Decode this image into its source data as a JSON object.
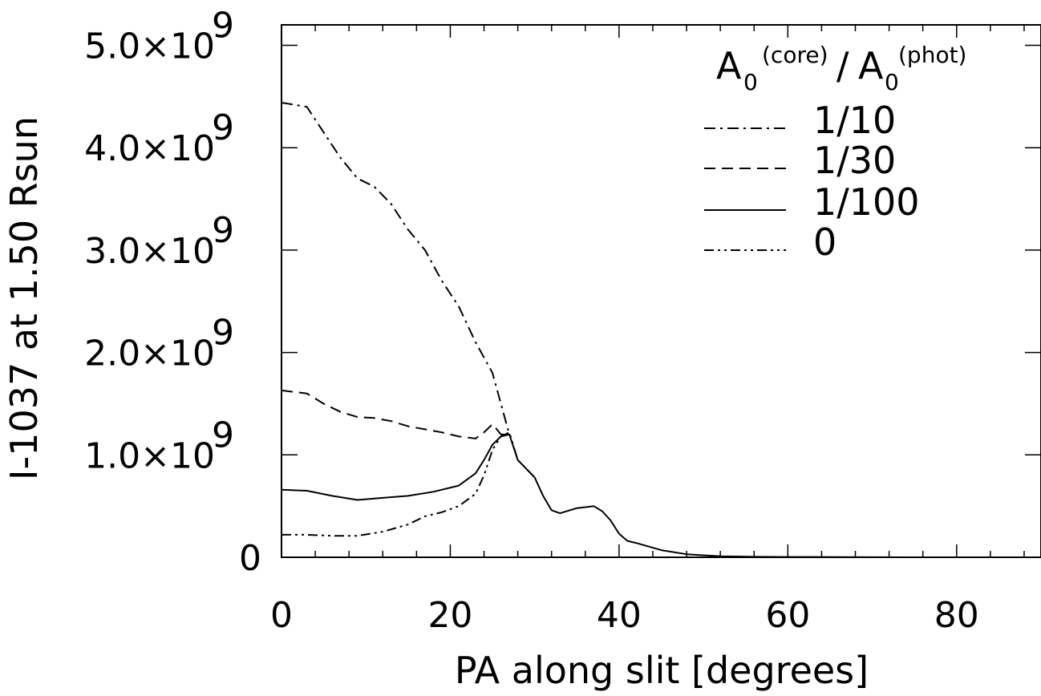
{
  "chart_data": {
    "type": "line",
    "xlabel": "PA along slit [degrees]",
    "ylabel": "I-1037  at 1.50 Rsun",
    "xlim": [
      0,
      90
    ],
    "ylim": [
      0,
      5200000000.0
    ],
    "xticks": [
      0,
      20,
      40,
      60,
      80
    ],
    "xtick_labels": [
      "0",
      "20",
      "40",
      "60",
      "80"
    ],
    "yticks": [
      0,
      1000000000.0,
      2000000000.0,
      3000000000.0,
      4000000000.0,
      5000000000.0
    ],
    "ytick_labels": [
      "0",
      "1.0×10",
      "2.0×10",
      "3.0×10",
      "4.0×10",
      "5.0×10"
    ],
    "ytick_exponent": "9",
    "legend": {
      "title_main": "A",
      "title_sub": "0",
      "title_sup1": "(core)",
      "title_slash": "/",
      "title_main2": "A",
      "title_sub2": "0",
      "title_sup2": "(phot)",
      "placement": "top-right"
    },
    "series": [
      {
        "name": "1/10",
        "dash": "dashdot",
        "x": [
          0,
          3,
          5,
          7,
          9,
          11,
          13,
          15,
          17,
          19,
          21,
          23,
          25,
          26,
          27
        ],
        "y": [
          4440000000.0,
          4400000000.0,
          4150000000.0,
          3900000000.0,
          3700000000.0,
          3620000000.0,
          3450000000.0,
          3200000000.0,
          3000000000.0,
          2700000000.0,
          2450000000.0,
          2100000000.0,
          1800000000.0,
          1500000000.0,
          1200000000.0
        ]
      },
      {
        "name": "1/30",
        "dash": "dash",
        "x": [
          0,
          3,
          5,
          7,
          9,
          11,
          13,
          15,
          17,
          19,
          21,
          23,
          24,
          25,
          26,
          27
        ],
        "y": [
          1630000000.0,
          1600000000.0,
          1500000000.0,
          1420000000.0,
          1370000000.0,
          1360000000.0,
          1330000000.0,
          1280000000.0,
          1250000000.0,
          1220000000.0,
          1180000000.0,
          1160000000.0,
          1220000000.0,
          1300000000.0,
          1200000000.0,
          1200000000.0
        ]
      },
      {
        "name": "1/100",
        "dash": "solid",
        "x": [
          0,
          3,
          6,
          9,
          12,
          15,
          18,
          21,
          23,
          24,
          25,
          26,
          27,
          28,
          30,
          31,
          32,
          33,
          35,
          37,
          38,
          39,
          40,
          41,
          42,
          45,
          48,
          52,
          56,
          60,
          65,
          70,
          74
        ],
        "y": [
          660000000.0,
          650000000.0,
          600000000.0,
          560000000.0,
          580000000.0,
          600000000.0,
          640000000.0,
          700000000.0,
          820000000.0,
          950000000.0,
          1100000000.0,
          1180000000.0,
          1200000000.0,
          950000000.0,
          780000000.0,
          600000000.0,
          460000000.0,
          430000000.0,
          480000000.0,
          500000000.0,
          450000000.0,
          360000000.0,
          230000000.0,
          160000000.0,
          140000000.0,
          70000000.0,
          30000000.0,
          10000000.0,
          5000000.0,
          3000000.0,
          2000000.0,
          1000000.0,
          0.0
        ]
      },
      {
        "name": "0",
        "dash": "dashdotdot",
        "x": [
          0,
          3,
          6,
          9,
          12,
          15,
          17,
          19,
          21,
          23,
          24,
          25,
          26,
          27,
          28,
          30
        ],
        "y": [
          220000000.0,
          220000000.0,
          210000000.0,
          210000000.0,
          250000000.0,
          320000000.0,
          400000000.0,
          440000000.0,
          500000000.0,
          620000000.0,
          800000000.0,
          1050000000.0,
          1180000000.0,
          1220000000.0,
          950000000.0,
          780000000.0
        ]
      }
    ]
  }
}
